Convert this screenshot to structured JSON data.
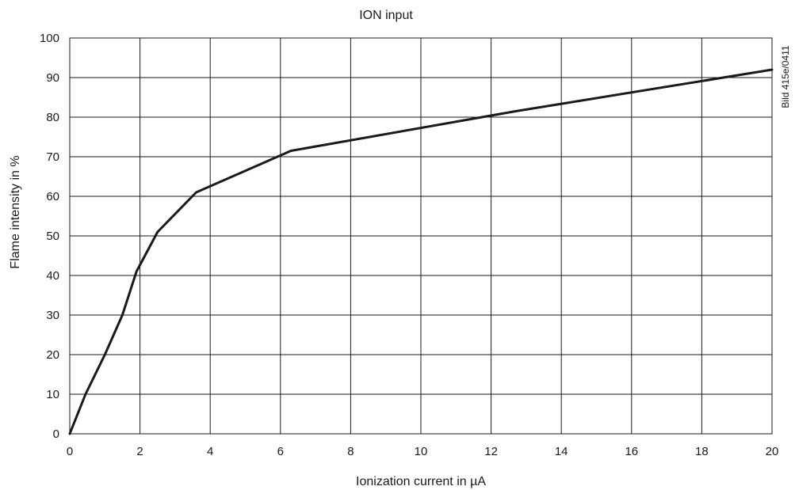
{
  "chart_data": {
    "type": "line",
    "title": "ION input",
    "xlabel": "Ionization current in µA",
    "ylabel": "Flame intensity in %",
    "side_note": "Bild 415e/0411",
    "xlim": [
      0,
      20
    ],
    "ylim": [
      0,
      100
    ],
    "x_ticks": [
      0,
      2,
      4,
      6,
      8,
      10,
      12,
      14,
      16,
      18,
      20
    ],
    "y_ticks": [
      0,
      10,
      20,
      30,
      40,
      50,
      60,
      70,
      80,
      90,
      100
    ],
    "grid": true,
    "line_color": "#1a1a1a",
    "series": [
      {
        "x": [
          0,
          0.45,
          1.0,
          1.5,
          1.9,
          2.5,
          3.6,
          6.3,
          12.7,
          20
        ],
        "y": [
          0,
          10,
          20,
          30,
          41,
          51,
          61,
          71.5,
          81.5,
          92
        ]
      }
    ]
  }
}
